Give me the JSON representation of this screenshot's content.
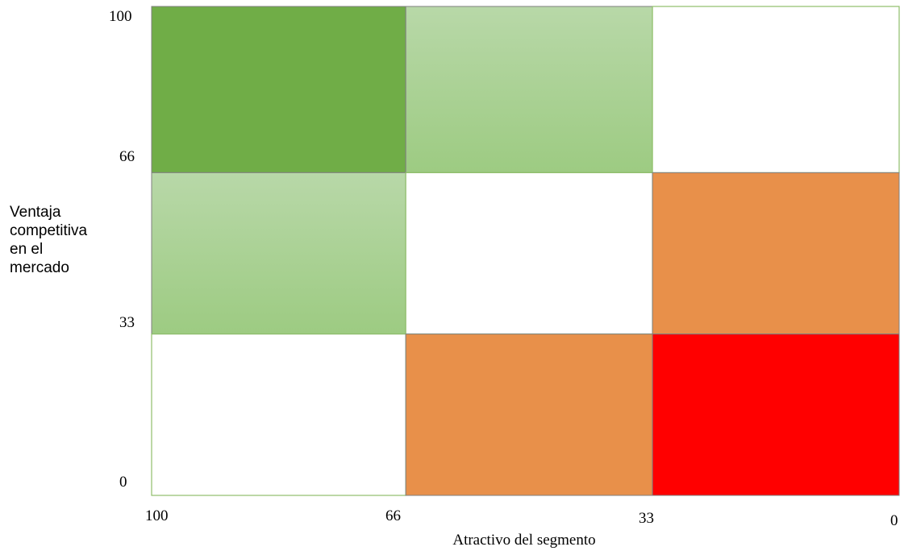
{
  "chart_data": {
    "type": "heatmap",
    "title": "",
    "xlabel": "Atractivo del segmento",
    "ylabel_lines": [
      "Ventaja",
      "competitiva",
      "en el",
      "mercado"
    ],
    "x_ticks": [
      "100",
      "66",
      "33",
      "0"
    ],
    "y_ticks": [
      "100",
      "66",
      "33",
      "0"
    ],
    "x_reversed": true,
    "xlim": [
      100,
      0
    ],
    "ylim": [
      0,
      100
    ],
    "cells": [
      {
        "x": [
          100,
          66
        ],
        "y": [
          66,
          100
        ],
        "color": "#70ad47",
        "shade": "dark-green"
      },
      {
        "x": [
          66,
          33
        ],
        "y": [
          66,
          100
        ],
        "color": "#a9d18e",
        "shade": "light-green"
      },
      {
        "x": [
          33,
          0
        ],
        "y": [
          66,
          100
        ],
        "color": "#ffffff",
        "shade": "white"
      },
      {
        "x": [
          100,
          66
        ],
        "y": [
          33,
          66
        ],
        "color": "#a9d18e",
        "shade": "light-green"
      },
      {
        "x": [
          66,
          33
        ],
        "y": [
          33,
          66
        ],
        "color": "#ffffff",
        "shade": "white"
      },
      {
        "x": [
          33,
          0
        ],
        "y": [
          33,
          66
        ],
        "color": "#e8904a",
        "shade": "orange"
      },
      {
        "x": [
          100,
          66
        ],
        "y": [
          0,
          33
        ],
        "color": "#ffffff",
        "shade": "white"
      },
      {
        "x": [
          66,
          33
        ],
        "y": [
          0,
          33
        ],
        "color": "#e8904a",
        "shade": "orange"
      },
      {
        "x": [
          33,
          0
        ],
        "y": [
          0,
          33
        ],
        "color": "#ff0000",
        "shade": "red"
      }
    ],
    "grid_line_color": "#8fbf6a"
  }
}
